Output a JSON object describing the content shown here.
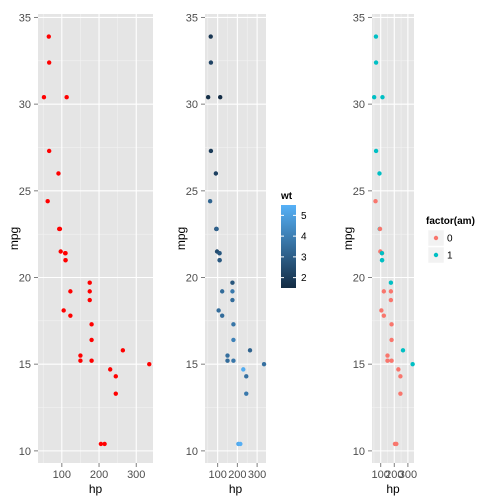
{
  "chart_data": [
    {
      "type": "scatter",
      "xlabel": "hp",
      "ylabel": "mpg",
      "xlim": [
        36,
        345
      ],
      "ylim": [
        9.3,
        35.2
      ],
      "xticks": [
        100,
        200,
        300
      ],
      "xtick_labels": [
        "100",
        "200",
        "300"
      ],
      "yticks": [
        10,
        15,
        20,
        25,
        30,
        35
      ],
      "ytick_labels": [
        "10",
        "15",
        "20",
        "25",
        "30",
        "35"
      ],
      "color": "#ff0000",
      "grid": true,
      "points": [
        {
          "x": 110,
          "y": 21.0
        },
        {
          "x": 110,
          "y": 21.0
        },
        {
          "x": 93,
          "y": 22.8
        },
        {
          "x": 110,
          "y": 21.4
        },
        {
          "x": 175,
          "y": 18.7
        },
        {
          "x": 105,
          "y": 18.1
        },
        {
          "x": 245,
          "y": 14.3
        },
        {
          "x": 62,
          "y": 24.4
        },
        {
          "x": 95,
          "y": 22.8
        },
        {
          "x": 123,
          "y": 19.2
        },
        {
          "x": 123,
          "y": 17.8
        },
        {
          "x": 180,
          "y": 16.4
        },
        {
          "x": 180,
          "y": 17.3
        },
        {
          "x": 180,
          "y": 15.2
        },
        {
          "x": 205,
          "y": 10.4
        },
        {
          "x": 215,
          "y": 10.4
        },
        {
          "x": 230,
          "y": 14.7
        },
        {
          "x": 66,
          "y": 32.4
        },
        {
          "x": 52,
          "y": 30.4
        },
        {
          "x": 65,
          "y": 33.9
        },
        {
          "x": 97,
          "y": 21.5
        },
        {
          "x": 150,
          "y": 15.5
        },
        {
          "x": 150,
          "y": 15.2
        },
        {
          "x": 245,
          "y": 13.3
        },
        {
          "x": 175,
          "y": 19.2
        },
        {
          "x": 66,
          "y": 27.3
        },
        {
          "x": 91,
          "y": 26.0
        },
        {
          "x": 113,
          "y": 30.4
        },
        {
          "x": 264,
          "y": 15.8
        },
        {
          "x": 175,
          "y": 19.7
        },
        {
          "x": 335,
          "y": 15.0
        },
        {
          "x": 109,
          "y": 21.4
        }
      ]
    },
    {
      "type": "scatter",
      "xlabel": "hp",
      "ylabel": "mpg",
      "xlim": [
        36,
        345
      ],
      "ylim": [
        9.3,
        35.2
      ],
      "xticks": [
        100,
        200,
        300
      ],
      "xtick_labels": [
        "100",
        "200",
        "300"
      ],
      "yticks": [
        10,
        15,
        20,
        25,
        30,
        35
      ],
      "ytick_labels": [
        "10",
        "15",
        "20",
        "25",
        "30",
        "35"
      ],
      "grid": true,
      "color_by": "wt",
      "legend": {
        "title": "wt",
        "type": "gradient",
        "position": "right",
        "min": 1.5,
        "max": 5.5,
        "low_color": "#132b43",
        "high_color": "#56b1f7",
        "ticks": [
          2,
          3,
          4,
          5
        ],
        "tick_labels": [
          "2",
          "3",
          "4",
          "5"
        ]
      },
      "points": [
        {
          "x": 110,
          "y": 21.0,
          "wt": 2.62
        },
        {
          "x": 110,
          "y": 21.0,
          "wt": 2.875
        },
        {
          "x": 93,
          "y": 22.8,
          "wt": 2.32
        },
        {
          "x": 110,
          "y": 21.4,
          "wt": 3.215
        },
        {
          "x": 175,
          "y": 18.7,
          "wt": 3.44
        },
        {
          "x": 105,
          "y": 18.1,
          "wt": 3.46
        },
        {
          "x": 245,
          "y": 14.3,
          "wt": 3.57
        },
        {
          "x": 62,
          "y": 24.4,
          "wt": 3.19
        },
        {
          "x": 95,
          "y": 22.8,
          "wt": 3.15
        },
        {
          "x": 123,
          "y": 19.2,
          "wt": 3.44
        },
        {
          "x": 123,
          "y": 17.8,
          "wt": 3.44
        },
        {
          "x": 180,
          "y": 16.4,
          "wt": 4.07
        },
        {
          "x": 180,
          "y": 17.3,
          "wt": 3.73
        },
        {
          "x": 180,
          "y": 15.2,
          "wt": 3.78
        },
        {
          "x": 205,
          "y": 10.4,
          "wt": 5.25
        },
        {
          "x": 215,
          "y": 10.4,
          "wt": 5.424
        },
        {
          "x": 230,
          "y": 14.7,
          "wt": 5.345
        },
        {
          "x": 66,
          "y": 32.4,
          "wt": 2.2
        },
        {
          "x": 52,
          "y": 30.4,
          "wt": 1.615
        },
        {
          "x": 65,
          "y": 33.9,
          "wt": 1.835
        },
        {
          "x": 97,
          "y": 21.5,
          "wt": 2.465
        },
        {
          "x": 150,
          "y": 15.5,
          "wt": 3.52
        },
        {
          "x": 150,
          "y": 15.2,
          "wt": 3.435
        },
        {
          "x": 245,
          "y": 13.3,
          "wt": 3.84
        },
        {
          "x": 175,
          "y": 19.2,
          "wt": 3.845
        },
        {
          "x": 66,
          "y": 27.3,
          "wt": 1.935
        },
        {
          "x": 91,
          "y": 26.0,
          "wt": 2.14
        },
        {
          "x": 113,
          "y": 30.4,
          "wt": 1.513
        },
        {
          "x": 264,
          "y": 15.8,
          "wt": 3.17
        },
        {
          "x": 175,
          "y": 19.7,
          "wt": 2.77
        },
        {
          "x": 335,
          "y": 15.0,
          "wt": 3.57
        },
        {
          "x": 109,
          "y": 21.4,
          "wt": 2.78
        }
      ]
    },
    {
      "type": "scatter",
      "xlabel": "hp",
      "ylabel": "mpg",
      "xlim": [
        36,
        345
      ],
      "ylim": [
        9.3,
        35.2
      ],
      "xticks": [
        100,
        200,
        300
      ],
      "xtick_labels": [
        "100",
        "200",
        "300"
      ],
      "yticks": [
        10,
        15,
        20,
        25,
        30,
        35
      ],
      "ytick_labels": [
        "10",
        "15",
        "20",
        "25",
        "30",
        "35"
      ],
      "grid": true,
      "color_by": "factor(am)",
      "legend": {
        "title": "factor(am)",
        "type": "discrete",
        "position": "right",
        "entries": [
          {
            "label": "0",
            "color": "#f8766d"
          },
          {
            "label": "1",
            "color": "#00bfc4"
          }
        ]
      },
      "points": [
        {
          "x": 110,
          "y": 21.0,
          "group": "1"
        },
        {
          "x": 110,
          "y": 21.0,
          "group": "1"
        },
        {
          "x": 93,
          "y": 22.8,
          "group": "1"
        },
        {
          "x": 110,
          "y": 21.4,
          "group": "0"
        },
        {
          "x": 175,
          "y": 18.7,
          "group": "0"
        },
        {
          "x": 105,
          "y": 18.1,
          "group": "0"
        },
        {
          "x": 245,
          "y": 14.3,
          "group": "0"
        },
        {
          "x": 62,
          "y": 24.4,
          "group": "0"
        },
        {
          "x": 95,
          "y": 22.8,
          "group": "0"
        },
        {
          "x": 123,
          "y": 19.2,
          "group": "0"
        },
        {
          "x": 123,
          "y": 17.8,
          "group": "0"
        },
        {
          "x": 180,
          "y": 16.4,
          "group": "0"
        },
        {
          "x": 180,
          "y": 17.3,
          "group": "0"
        },
        {
          "x": 180,
          "y": 15.2,
          "group": "0"
        },
        {
          "x": 205,
          "y": 10.4,
          "group": "0"
        },
        {
          "x": 215,
          "y": 10.4,
          "group": "0"
        },
        {
          "x": 230,
          "y": 14.7,
          "group": "0"
        },
        {
          "x": 66,
          "y": 32.4,
          "group": "1"
        },
        {
          "x": 52,
          "y": 30.4,
          "group": "1"
        },
        {
          "x": 65,
          "y": 33.9,
          "group": "1"
        },
        {
          "x": 97,
          "y": 21.5,
          "group": "0"
        },
        {
          "x": 150,
          "y": 15.5,
          "group": "0"
        },
        {
          "x": 150,
          "y": 15.2,
          "group": "0"
        },
        {
          "x": 245,
          "y": 13.3,
          "group": "0"
        },
        {
          "x": 175,
          "y": 19.2,
          "group": "0"
        },
        {
          "x": 66,
          "y": 27.3,
          "group": "1"
        },
        {
          "x": 91,
          "y": 26.0,
          "group": "1"
        },
        {
          "x": 113,
          "y": 30.4,
          "group": "1"
        },
        {
          "x": 264,
          "y": 15.8,
          "group": "1"
        },
        {
          "x": 175,
          "y": 19.7,
          "group": "1"
        },
        {
          "x": 335,
          "y": 15.0,
          "group": "1"
        },
        {
          "x": 109,
          "y": 21.4,
          "group": "1"
        }
      ]
    }
  ]
}
